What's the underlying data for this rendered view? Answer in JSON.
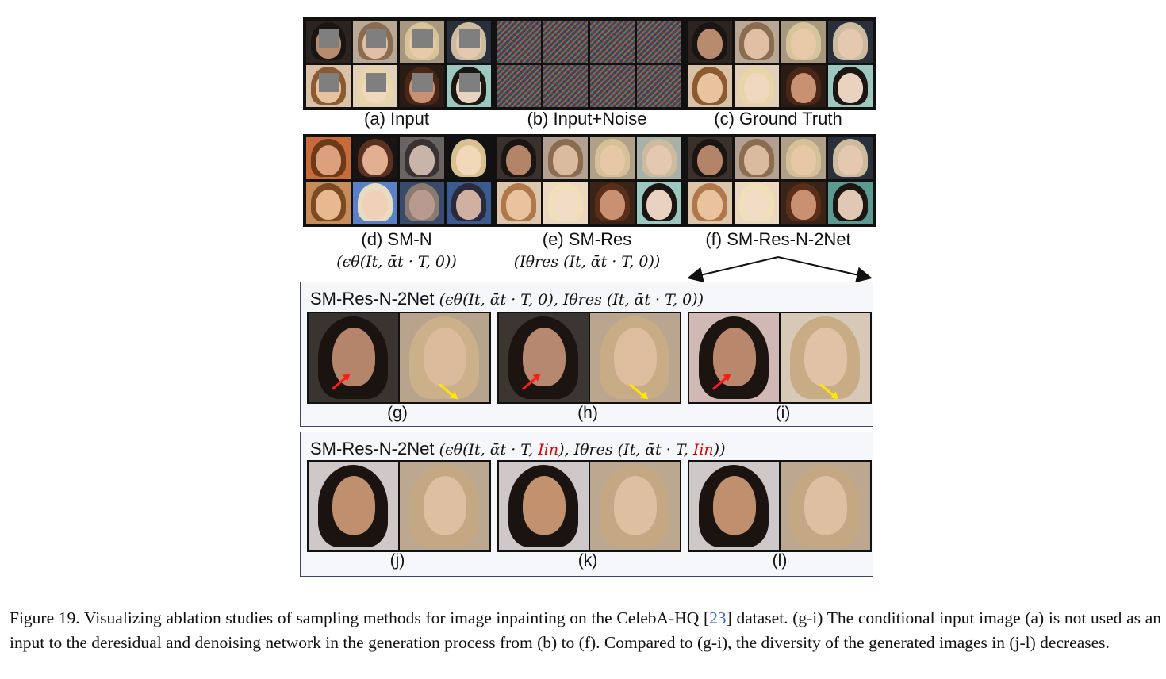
{
  "captions": {
    "a": "(a) Input",
    "b": "(b) Input+Noise",
    "c": "(c) Ground Truth",
    "d": "(d) SM-N",
    "d_formula": "(ϵθ(It, ᾱt · T, 0))",
    "e": "(e) SM-Res",
    "e_formula": "(Iθres (It, ᾱt · T, 0))",
    "f": "(f) SM-Res-N-2Net"
  },
  "panel1": {
    "title": "SM-Res-N-2Net",
    "formula": "(ϵθ(It, ᾱt · T, 0), Iθres (It, ᾱt · T, 0))",
    "labels": [
      "(g)",
      "(h)",
      "(i)"
    ]
  },
  "panel2": {
    "title": "SM-Res-N-2Net",
    "formula_a": "(ϵθ(It, ᾱt · T, ",
    "formula_in": "Iin",
    "formula_b": "), Iθres (It, ᾱt · T, ",
    "formula_c": "))",
    "labels": [
      "(j)",
      "(k)",
      "(l)"
    ]
  },
  "figure_caption": {
    "prefix": "Figure 19. Visualizing ablation studies of sampling methods for image inpainting on the CelebA-HQ [",
    "cite": "23",
    "suffix": "] dataset. (g-i) The conditional input image (a) is not used as an input to the deresidual and denoising network in the generation process from (b) to (f). Compared to (g-i), the diversity of the generated images in (j-l) decreases."
  },
  "colors": {
    "highlight": "#e00000",
    "cite": "#3366cc",
    "arrow_red": "#ff1a1a",
    "arrow_yellow": "#ffe600",
    "panel_border": "#3a4a66"
  }
}
